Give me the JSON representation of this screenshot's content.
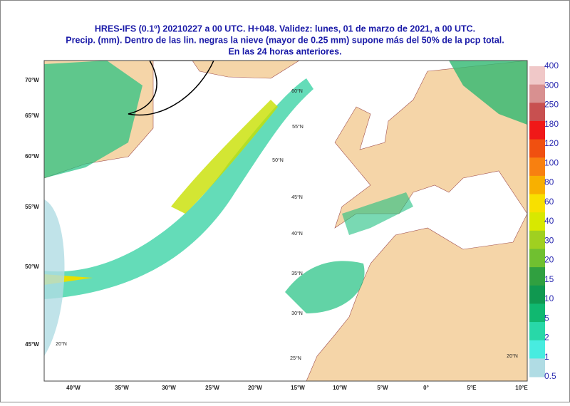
{
  "header": {
    "lines": [
      "HRES-IFS (0.1º) 20210227 a 00 UTC.  H+048. Validez: lunes, 01 de marzo de 2021,  a  00 UTC.",
      "Precip. (mm). Dentro de las lin. negras la nieve (mayor de 0.25 mm) supone más del 50% de la pcp total.",
      "En las 24 horas anteriores."
    ]
  },
  "map": {
    "bottom_labels": [
      "40°W",
      "35°W",
      "30°W",
      "25°W",
      "20°W",
      "15°W",
      "10°W",
      "5°W",
      "0°",
      "5°E",
      "10°E"
    ],
    "left_labels": [
      "70°W",
      "65°W",
      "60°W",
      "55°W",
      "50°W",
      "45°W"
    ],
    "lat_labels": [
      "60°N",
      "55°N",
      "50°N",
      "45°N",
      "40°N",
      "35°N",
      "30°N",
      "25°N",
      "20°N",
      "20°N"
    ]
  },
  "legend": {
    "labels": [
      400,
      300,
      250,
      180,
      120,
      100,
      80,
      60,
      40,
      30,
      20,
      15,
      10,
      5,
      2,
      1,
      0.5
    ],
    "colors": [
      "#f0c8c8",
      "#d89090",
      "#c85050",
      "#f01818",
      "#f05010",
      "#f88010",
      "#f8b000",
      "#f8e000",
      "#d8e800",
      "#a0d020",
      "#70c030",
      "#30a040",
      "#109850",
      "#10b870",
      "#28d8a8",
      "#48ece0",
      "#b0dce4"
    ]
  }
}
